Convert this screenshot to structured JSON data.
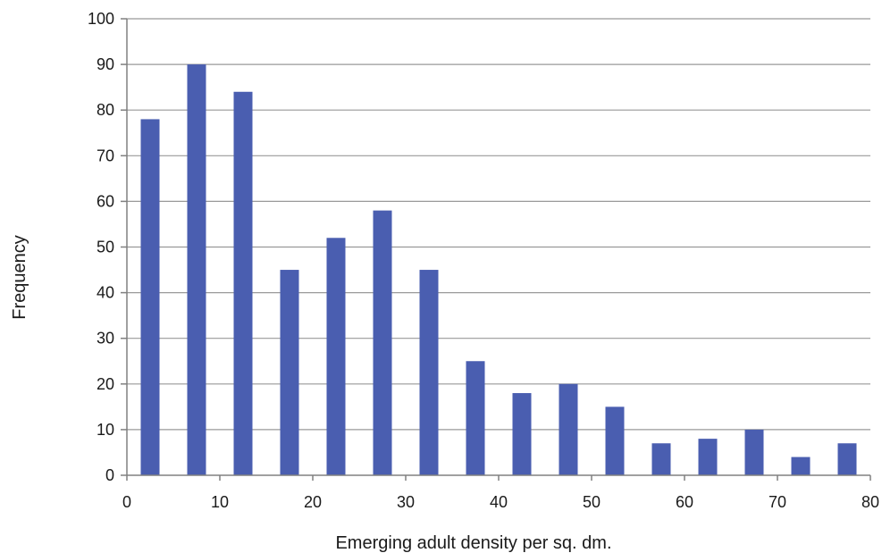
{
  "chart_data": {
    "type": "bar",
    "xlabel": "Emerging adult density per sq. dm.",
    "ylabel": "Frequency",
    "x": [
      2.5,
      7.5,
      12.5,
      17.5,
      22.5,
      27.5,
      32.5,
      37.5,
      42.5,
      47.5,
      52.5,
      57.5,
      62.5,
      67.5,
      72.5,
      77.5
    ],
    "values": [
      78,
      90,
      84,
      45,
      52,
      58,
      45,
      25,
      18,
      20,
      15,
      7,
      8,
      10,
      4,
      7
    ],
    "xlim": [
      0,
      80
    ],
    "ylim": [
      0,
      100
    ],
    "xticks": [
      0,
      10,
      20,
      30,
      40,
      50,
      60,
      70,
      80
    ],
    "yticks": [
      0,
      10,
      20,
      30,
      40,
      50,
      60,
      70,
      80,
      90,
      100
    ],
    "grid": "horizontal",
    "bar_color": "#4a5eb0",
    "grid_color": "#999999"
  }
}
